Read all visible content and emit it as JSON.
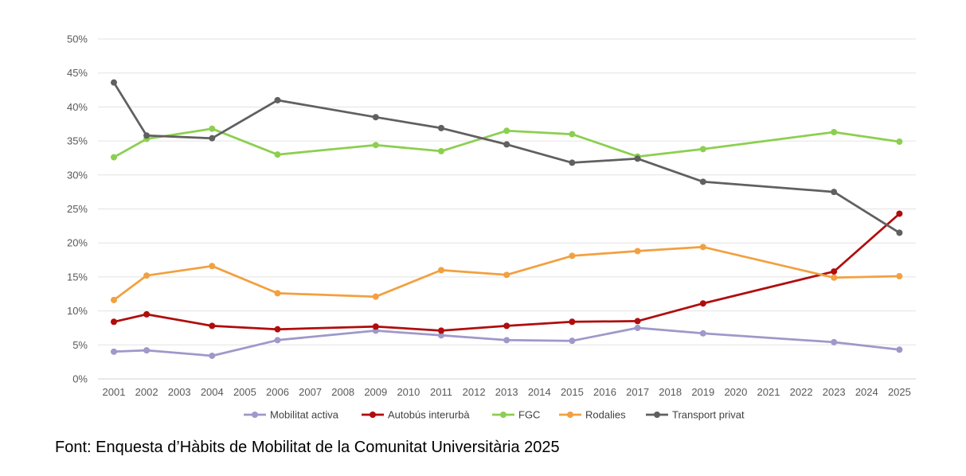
{
  "chart_data": {
    "type": "line",
    "title": "",
    "xlabel": "",
    "ylabel": "",
    "ylim": [
      0,
      50
    ],
    "y_ticks": [
      "0%",
      "5%",
      "10%",
      "15%",
      "20%",
      "25%",
      "30%",
      "35%",
      "40%",
      "45%",
      "50%"
    ],
    "y_tick_step": 5,
    "categories": [
      "2001",
      "2002",
      "2003",
      "2004",
      "2005",
      "2006",
      "2007",
      "2008",
      "2009",
      "2010",
      "2011",
      "2012",
      "2013",
      "2014",
      "2015",
      "2016",
      "2017",
      "2018",
      "2019",
      "2020",
      "2021",
      "2022",
      "2023",
      "2024",
      "2025"
    ],
    "grid": true,
    "legend_position": "bottom",
    "series": [
      {
        "name": "Mobilitat activa",
        "color": "#9e99c9",
        "points": [
          {
            "x": "2001",
            "y": 4.0
          },
          {
            "x": "2002",
            "y": 4.2
          },
          {
            "x": "2004",
            "y": 3.4
          },
          {
            "x": "2006",
            "y": 5.7
          },
          {
            "x": "2009",
            "y": 7.1
          },
          {
            "x": "2011",
            "y": 6.4
          },
          {
            "x": "2013",
            "y": 5.7
          },
          {
            "x": "2015",
            "y": 5.6
          },
          {
            "x": "2017",
            "y": 7.5
          },
          {
            "x": "2019",
            "y": 6.7
          },
          {
            "x": "2023",
            "y": 5.4
          },
          {
            "x": "2025",
            "y": 4.3
          }
        ]
      },
      {
        "name": "Autobús interurbà",
        "color": "#b00d0d",
        "points": [
          {
            "x": "2001",
            "y": 8.4
          },
          {
            "x": "2002",
            "y": 9.5
          },
          {
            "x": "2004",
            "y": 7.8
          },
          {
            "x": "2006",
            "y": 7.3
          },
          {
            "x": "2009",
            "y": 7.7
          },
          {
            "x": "2011",
            "y": 7.1
          },
          {
            "x": "2013",
            "y": 7.8
          },
          {
            "x": "2015",
            "y": 8.4
          },
          {
            "x": "2017",
            "y": 8.5
          },
          {
            "x": "2019",
            "y": 11.1
          },
          {
            "x": "2023",
            "y": 15.8
          },
          {
            "x": "2025",
            "y": 24.3
          }
        ]
      },
      {
        "name": "FGC",
        "color": "#8ccf50",
        "points": [
          {
            "x": "2001",
            "y": 32.6
          },
          {
            "x": "2002",
            "y": 35.3
          },
          {
            "x": "2004",
            "y": 36.8
          },
          {
            "x": "2006",
            "y": 33.0
          },
          {
            "x": "2009",
            "y": 34.4
          },
          {
            "x": "2011",
            "y": 33.5
          },
          {
            "x": "2013",
            "y": 36.5
          },
          {
            "x": "2015",
            "y": 36.0
          },
          {
            "x": "2017",
            "y": 32.7
          },
          {
            "x": "2019",
            "y": 33.8
          },
          {
            "x": "2023",
            "y": 36.3
          },
          {
            "x": "2025",
            "y": 34.9
          }
        ]
      },
      {
        "name": "Rodalies",
        "color": "#f2a040",
        "points": [
          {
            "x": "2001",
            "y": 11.6
          },
          {
            "x": "2002",
            "y": 15.2
          },
          {
            "x": "2004",
            "y": 16.6
          },
          {
            "x": "2006",
            "y": 12.6
          },
          {
            "x": "2009",
            "y": 12.1
          },
          {
            "x": "2011",
            "y": 16.0
          },
          {
            "x": "2013",
            "y": 15.3
          },
          {
            "x": "2015",
            "y": 18.1
          },
          {
            "x": "2017",
            "y": 18.8
          },
          {
            "x": "2019",
            "y": 19.4
          },
          {
            "x": "2023",
            "y": 14.9
          },
          {
            "x": "2025",
            "y": 15.1
          }
        ]
      },
      {
        "name": "Transport privat",
        "color": "#606060",
        "points": [
          {
            "x": "2001",
            "y": 43.6
          },
          {
            "x": "2002",
            "y": 35.8
          },
          {
            "x": "2004",
            "y": 35.4
          },
          {
            "x": "2006",
            "y": 41.0
          },
          {
            "x": "2009",
            "y": 38.5
          },
          {
            "x": "2011",
            "y": 36.9
          },
          {
            "x": "2013",
            "y": 34.5
          },
          {
            "x": "2015",
            "y": 31.8
          },
          {
            "x": "2017",
            "y": 32.4
          },
          {
            "x": "2019",
            "y": 29.0
          },
          {
            "x": "2023",
            "y": 27.5
          },
          {
            "x": "2025",
            "y": 21.5
          }
        ]
      }
    ]
  },
  "source_text": "Font: Enquesta d’Hàbits de Mobilitat de la Comunitat Universitària 2025"
}
